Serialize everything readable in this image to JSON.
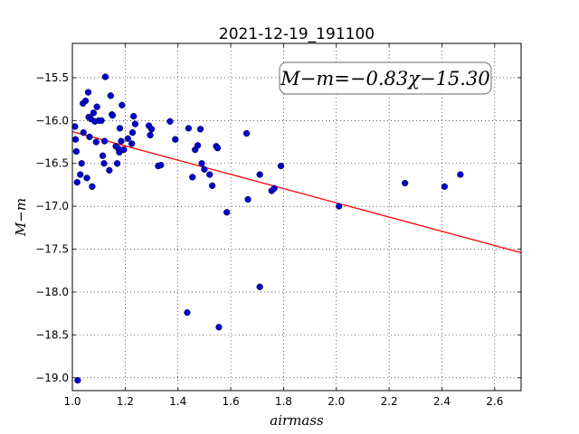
{
  "chart_data": {
    "type": "scatter",
    "title": "2021-12-19_191100",
    "xlabel": "airmass",
    "ylabel": "M−m",
    "xlim": [
      1.0,
      2.7
    ],
    "ylim": [
      -19.15,
      -15.1
    ],
    "y_inverted": true,
    "grid": true,
    "x_ticks": [
      1.0,
      1.2,
      1.4,
      1.6,
      1.8,
      2.0,
      2.2,
      2.4,
      2.6
    ],
    "x_tick_labels": [
      "1.0",
      "1.2",
      "1.4",
      "1.6",
      "1.8",
      "2.0",
      "2.2",
      "2.4",
      "2.6"
    ],
    "y_ticks": [
      -15.5,
      -16.0,
      -16.5,
      -17.0,
      -17.5,
      -18.0,
      -18.5,
      -19.0
    ],
    "y_tick_labels": [
      "−15.5",
      "−16.0",
      "−16.5",
      "−17.0",
      "−17.5",
      "−18.0",
      "−18.5",
      "−19.0"
    ],
    "annotation": "M−m=−0.83χ−15.30",
    "fit": {
      "slope": -0.83,
      "intercept": -15.3,
      "x_range": [
        1.0,
        2.7
      ],
      "color": "#ff0000"
    },
    "series": [
      {
        "marker_color": "#0000cc",
        "points": [
          [
            1.01,
            -16.07
          ],
          [
            1.012,
            -16.22
          ],
          [
            1.015,
            -16.36
          ],
          [
            1.018,
            -16.72
          ],
          [
            1.02,
            -19.03
          ],
          [
            1.03,
            -16.63
          ],
          [
            1.035,
            -16.5
          ],
          [
            1.04,
            -15.8
          ],
          [
            1.042,
            -16.14
          ],
          [
            1.05,
            -15.77
          ],
          [
            1.055,
            -16.67
          ],
          [
            1.06,
            -15.67
          ],
          [
            1.062,
            -15.96
          ],
          [
            1.065,
            -16.19
          ],
          [
            1.07,
            -15.98
          ],
          [
            1.075,
            -16.77
          ],
          [
            1.08,
            -15.91
          ],
          [
            1.085,
            -16.01
          ],
          [
            1.09,
            -16.25
          ],
          [
            1.093,
            -15.84
          ],
          [
            1.1,
            -16.0
          ],
          [
            1.11,
            -16.0
          ],
          [
            1.115,
            -16.41
          ],
          [
            1.12,
            -16.5
          ],
          [
            1.122,
            -16.24
          ],
          [
            1.125,
            -15.49
          ],
          [
            1.14,
            -16.58
          ],
          [
            1.145,
            -15.71
          ],
          [
            1.15,
            -15.93
          ],
          [
            1.152,
            -15.94
          ],
          [
            1.165,
            -16.3
          ],
          [
            1.17,
            -16.5
          ],
          [
            1.175,
            -16.33
          ],
          [
            1.178,
            -16.37
          ],
          [
            1.18,
            -16.09
          ],
          [
            1.185,
            -16.24
          ],
          [
            1.188,
            -15.82
          ],
          [
            1.195,
            -16.34
          ],
          [
            1.21,
            -16.21
          ],
          [
            1.225,
            -16.27
          ],
          [
            1.228,
            -16.14
          ],
          [
            1.232,
            -15.95
          ],
          [
            1.238,
            -16.04
          ],
          [
            1.29,
            -16.06
          ],
          [
            1.295,
            -16.17
          ],
          [
            1.3,
            -16.1
          ],
          [
            1.325,
            -16.53
          ],
          [
            1.335,
            -16.52
          ],
          [
            1.37,
            -16.01
          ],
          [
            1.39,
            -16.22
          ],
          [
            1.435,
            -18.24
          ],
          [
            1.44,
            -16.09
          ],
          [
            1.455,
            -16.66
          ],
          [
            1.465,
            -16.34
          ],
          [
            1.475,
            -16.29
          ],
          [
            1.485,
            -16.1
          ],
          [
            1.49,
            -16.5
          ],
          [
            1.5,
            -16.57
          ],
          [
            1.52,
            -16.63
          ],
          [
            1.53,
            -16.76
          ],
          [
            1.545,
            -16.3
          ],
          [
            1.55,
            -16.32
          ],
          [
            1.555,
            -18.41
          ],
          [
            1.585,
            -17.07
          ],
          [
            1.66,
            -16.15
          ],
          [
            1.665,
            -16.92
          ],
          [
            1.71,
            -16.63
          ],
          [
            1.71,
            -17.94
          ],
          [
            1.755,
            -16.82
          ],
          [
            1.765,
            -16.79
          ],
          [
            1.79,
            -16.53
          ],
          [
            2.01,
            -17.0
          ],
          [
            2.26,
            -16.73
          ],
          [
            2.41,
            -16.77
          ],
          [
            2.47,
            -16.63
          ]
        ]
      }
    ]
  }
}
